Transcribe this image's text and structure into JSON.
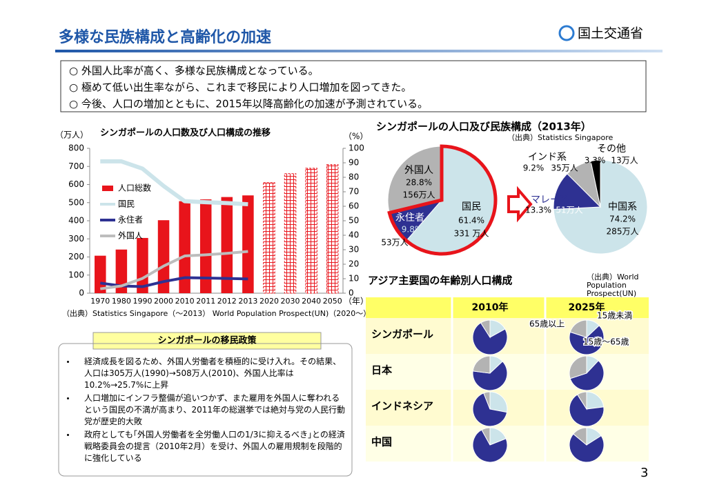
{
  "header": {
    "title": "多様な民族構成と高齢化の加速",
    "logo": "国土交通省"
  },
  "summary": [
    "○ 外国人比率が高く、多様な民族構成となっている。",
    "○ 極めて低い出生率ながら、これまで移民により人口増加を図ってきた。",
    "○ 今後、人口の増加とともに、2015年以降高齢化の加速が予測されている。"
  ],
  "chart_data": [
    {
      "type": "bar-line",
      "title": "シンガポールの人口数及び人口構成の推移",
      "ylabel": "（万人）",
      "y2label": "（%）",
      "xlabel": "（年）",
      "source": "（出典）Statistics Singapore（～2013） World Population Prospect(UN)（2020～）",
      "categories": [
        "1970",
        "1980",
        "1990",
        "2000",
        "2010",
        "2011",
        "2012",
        "2013",
        "2020",
        "2030",
        "2040",
        "2050"
      ],
      "ylim": [
        0,
        800
      ],
      "yticks": [
        0,
        100,
        200,
        300,
        400,
        500,
        600,
        700,
        800
      ],
      "y2lim": [
        0,
        100
      ],
      "y2ticks": [
        0,
        10,
        20,
        30,
        40,
        50,
        60,
        70,
        80,
        90,
        100
      ],
      "legend": "left",
      "series": [
        {
          "name": "人口総数",
          "type": "bar",
          "color": "#e8141b",
          "values": [
            207,
            241,
            305,
            403,
            508,
            518,
            531,
            540,
            610,
            660,
            690,
            710
          ],
          "hatched": [
            false,
            false,
            false,
            false,
            false,
            false,
            false,
            false,
            true,
            true,
            true,
            true
          ]
        },
        {
          "name": "国民",
          "type": "line",
          "axis": "y2",
          "color": "#cce4ea",
          "values": [
            91,
            91,
            86,
            74,
            63.5,
            62.8,
            62.2,
            61.4,
            null,
            null,
            null,
            null
          ]
        },
        {
          "name": "永住者",
          "type": "line",
          "axis": "y2",
          "color": "#2e3192",
          "values": [
            7,
            5,
            4.5,
            8,
            10.7,
            10.5,
            10.2,
            9.8,
            null,
            null,
            null,
            null
          ]
        },
        {
          "name": "外国人",
          "type": "line",
          "axis": "y2",
          "color": "#bdbdbd",
          "values": [
            3,
            5,
            10.2,
            18.7,
            25.7,
            26.5,
            27.5,
            28.8,
            null,
            null,
            null,
            null
          ]
        }
      ]
    },
    {
      "type": "pie",
      "title": "シンガポールの人口及び民族構成（2013年）",
      "source": "（出典）Statistics Singapore",
      "categories": [
        "国民",
        "永住者",
        "外国人"
      ],
      "values": [
        61.4,
        9.8,
        28.8
      ],
      "value_labels": [
        "61.4%",
        "9.8%",
        "28.8%"
      ],
      "counts": [
        331,
        53,
        156
      ],
      "count_labels": [
        "331 万人",
        "53万人",
        "156万人"
      ],
      "colors": [
        "#cce4ea",
        "#2e3192",
        "#b3b3b3"
      ]
    },
    {
      "type": "pie",
      "categories": [
        "中国系",
        "マレー系",
        "インド系",
        "その他"
      ],
      "values": [
        74.2,
        13.3,
        9.2,
        3.3
      ],
      "value_labels": [
        "74.2%",
        "13.3%",
        "9.2%",
        "3.3%"
      ],
      "counts": [
        285,
        51,
        35,
        13
      ],
      "count_labels": [
        "285万人",
        "51万人",
        "35万人",
        "13万人"
      ],
      "colors": [
        "#cce4ea",
        "#2e3192",
        "#b3b3b3",
        "#000000"
      ]
    },
    {
      "type": "pie-grid",
      "title": "アジア主要国の年齢別人口構成",
      "source": "（出典）World Population Prospect(UN)",
      "rows": [
        "シンガポール",
        "日本",
        "インドネシア",
        "中国"
      ],
      "columns": [
        "2010年",
        "2025年"
      ],
      "series": [
        {
          "name": "15歳未満",
          "color": "#cce4ea",
          "values": [
            [
              17,
              13
            ],
            [
              13,
              12
            ],
            [
              28,
              23
            ],
            [
              19,
              16
            ]
          ]
        },
        {
          "name": "15歳～65歳",
          "color": "#2e3192",
          "values": [
            [
              74,
              67
            ],
            [
              64,
              58
            ],
            [
              66,
              68
            ],
            [
              73,
              70
            ]
          ]
        },
        {
          "name": "65歳以上",
          "color": "#b3b3b3",
          "values": [
            [
              9,
              20
            ],
            [
              23,
              30
            ],
            [
              6,
              9
            ],
            [
              8,
              14
            ]
          ]
        }
      ]
    }
  ],
  "policy": {
    "title": "シンガポールの移民政策",
    "bullets": [
      "経済成長を図るため、外国人労働者を積極的に受け入れ。その結果、人口は305万人(1990)→508万人(2010)、外国人比率は10.2%→25.7%に上昇",
      "人口増加にインフラ整備が追いつかず、また雇用を外国人に奪われるという国民の不満が高まり、2011年の総選挙では絶対与党の人民行動党が歴史的大敗",
      "政府としても｢外国人労働者を全労働人口の1/3に抑えるべき｣との経済戦略委員会の提言（2010年2月）を受け、外国人の雇用規制を段階的に強化している"
    ]
  },
  "page_number": "3"
}
